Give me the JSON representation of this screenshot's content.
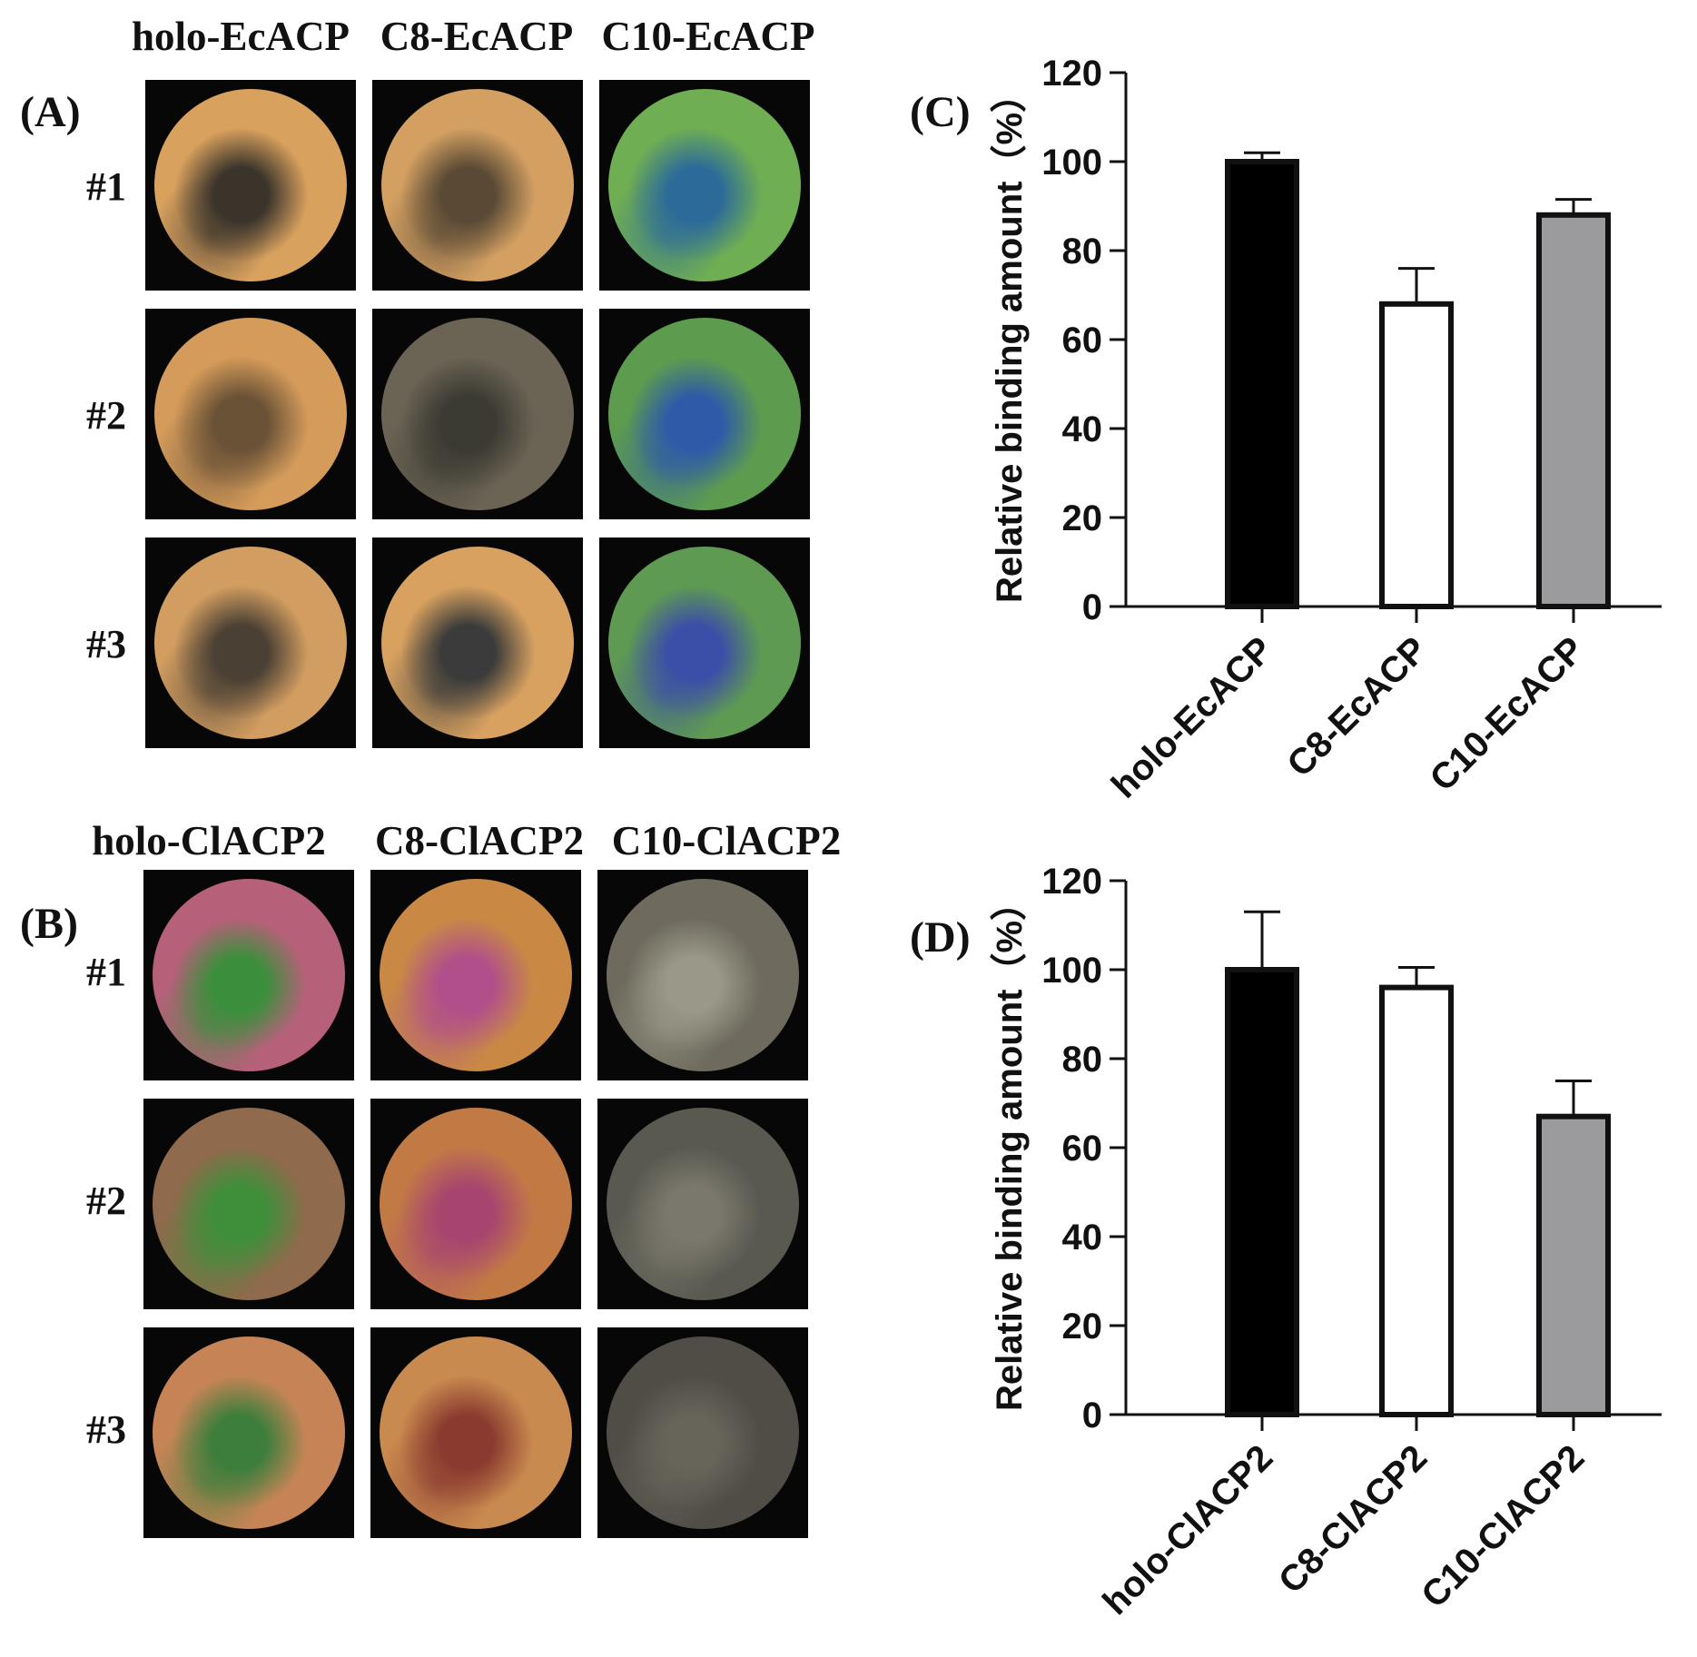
{
  "panels": {
    "A": {
      "label": "(A)",
      "columns": [
        "holo-EcACP",
        "C8-EcACP",
        "C10-EcACP"
      ],
      "rows": [
        "#1",
        "#2",
        "#3"
      ],
      "disk_colors": [
        [
          "#d9a15e",
          "#d4a062",
          "#6fae53"
        ],
        [
          "#d49b5a",
          "#6b6354",
          "#5d9c4f"
        ],
        [
          "#d29d60",
          "#d8a160",
          "#5f9a52"
        ]
      ],
      "accent_colors": [
        [
          "#3a342b",
          "#5a4a35",
          "#2c6a9a"
        ],
        [
          "#6a5236",
          "#3b3a33",
          "#2e5aa8"
        ],
        [
          "#4a4034",
          "#3a3b3a",
          "#3b4ea8"
        ]
      ]
    },
    "B": {
      "label": "(B)",
      "columns": [
        "holo-ClACP2",
        "C8-ClACP2",
        "C10-ClACP2"
      ],
      "rows": [
        "#1",
        "#2",
        "#3"
      ],
      "disk_colors": [
        [
          "#b7607a",
          "#c98945",
          "#6e6b5e"
        ],
        [
          "#8f6a4c",
          "#c27a45",
          "#5a5950"
        ],
        [
          "#c68456",
          "#c98a4f",
          "#4f4d46"
        ]
      ],
      "accent_colors": [
        [
          "#3b8f3c",
          "#b04f8a",
          "#9a9888"
        ],
        [
          "#3f8f3a",
          "#a7456f",
          "#7a786c"
        ],
        [
          "#3d7e3c",
          "#8a3b2f",
          "#67645a"
        ]
      ]
    },
    "C": {
      "label": "(C)",
      "chart_data": {
        "type": "bar",
        "categories": [
          "holo-EcACP",
          "C8-EcACP",
          "C10-EcACP"
        ],
        "values": [
          100,
          68,
          88
        ],
        "errors": [
          2,
          8,
          3.5
        ],
        "bar_colors": [
          "#000000",
          "#ffffff",
          "#9b9b9d"
        ],
        "ylabel": "Relative binding amount（%）",
        "ylim": [
          0,
          120
        ],
        "yticks": [
          0,
          20,
          40,
          60,
          80,
          100,
          120
        ]
      }
    },
    "D": {
      "label": "(D)",
      "chart_data": {
        "type": "bar",
        "categories": [
          "holo-ClACP2",
          "C8-ClACP2",
          "C10-ClACP2"
        ],
        "values": [
          100,
          96,
          67
        ],
        "errors": [
          13,
          4.5,
          8
        ],
        "bar_colors": [
          "#000000",
          "#ffffff",
          "#9b9b9d"
        ],
        "ylabel": "Relative binding amount（%）",
        "ylim": [
          0,
          120
        ],
        "yticks": [
          0,
          20,
          40,
          60,
          80,
          100,
          120
        ]
      }
    }
  }
}
